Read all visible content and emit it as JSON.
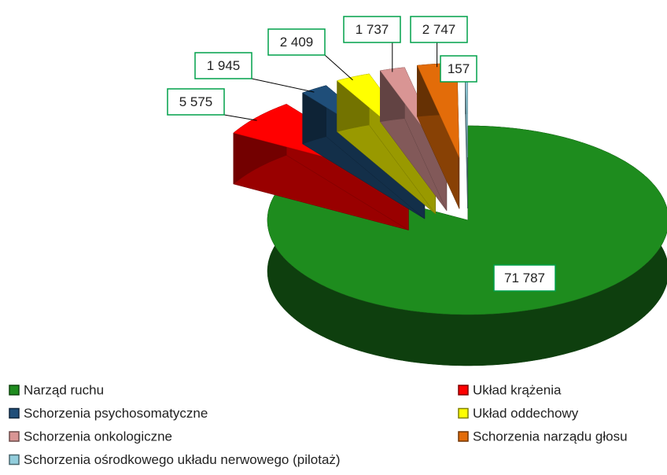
{
  "chart_data": {
    "type": "pie",
    "categories": [
      "Narząd ruchu",
      "Układ krążenia",
      "Schorzenia psychosomatyczne",
      "Układ oddechowy",
      "Schorzenia onkologiczne",
      "Schorzenia narządu głosu",
      "Schorzenia ośrodkowego układu nerwowego (pilotaż)"
    ],
    "values": [
      71787,
      5575,
      1945,
      2409,
      1737,
      2747,
      157
    ],
    "value_labels": [
      "71 787",
      "5 575",
      "1 945",
      "2 409",
      "1 737",
      "2 747",
      "157"
    ],
    "colors": [
      "#1e8c1e",
      "#ff0000",
      "#1f4e79",
      "#ffff00",
      "#d99594",
      "#e36c09",
      "#92cddc"
    ],
    "legend": "bottom"
  }
}
